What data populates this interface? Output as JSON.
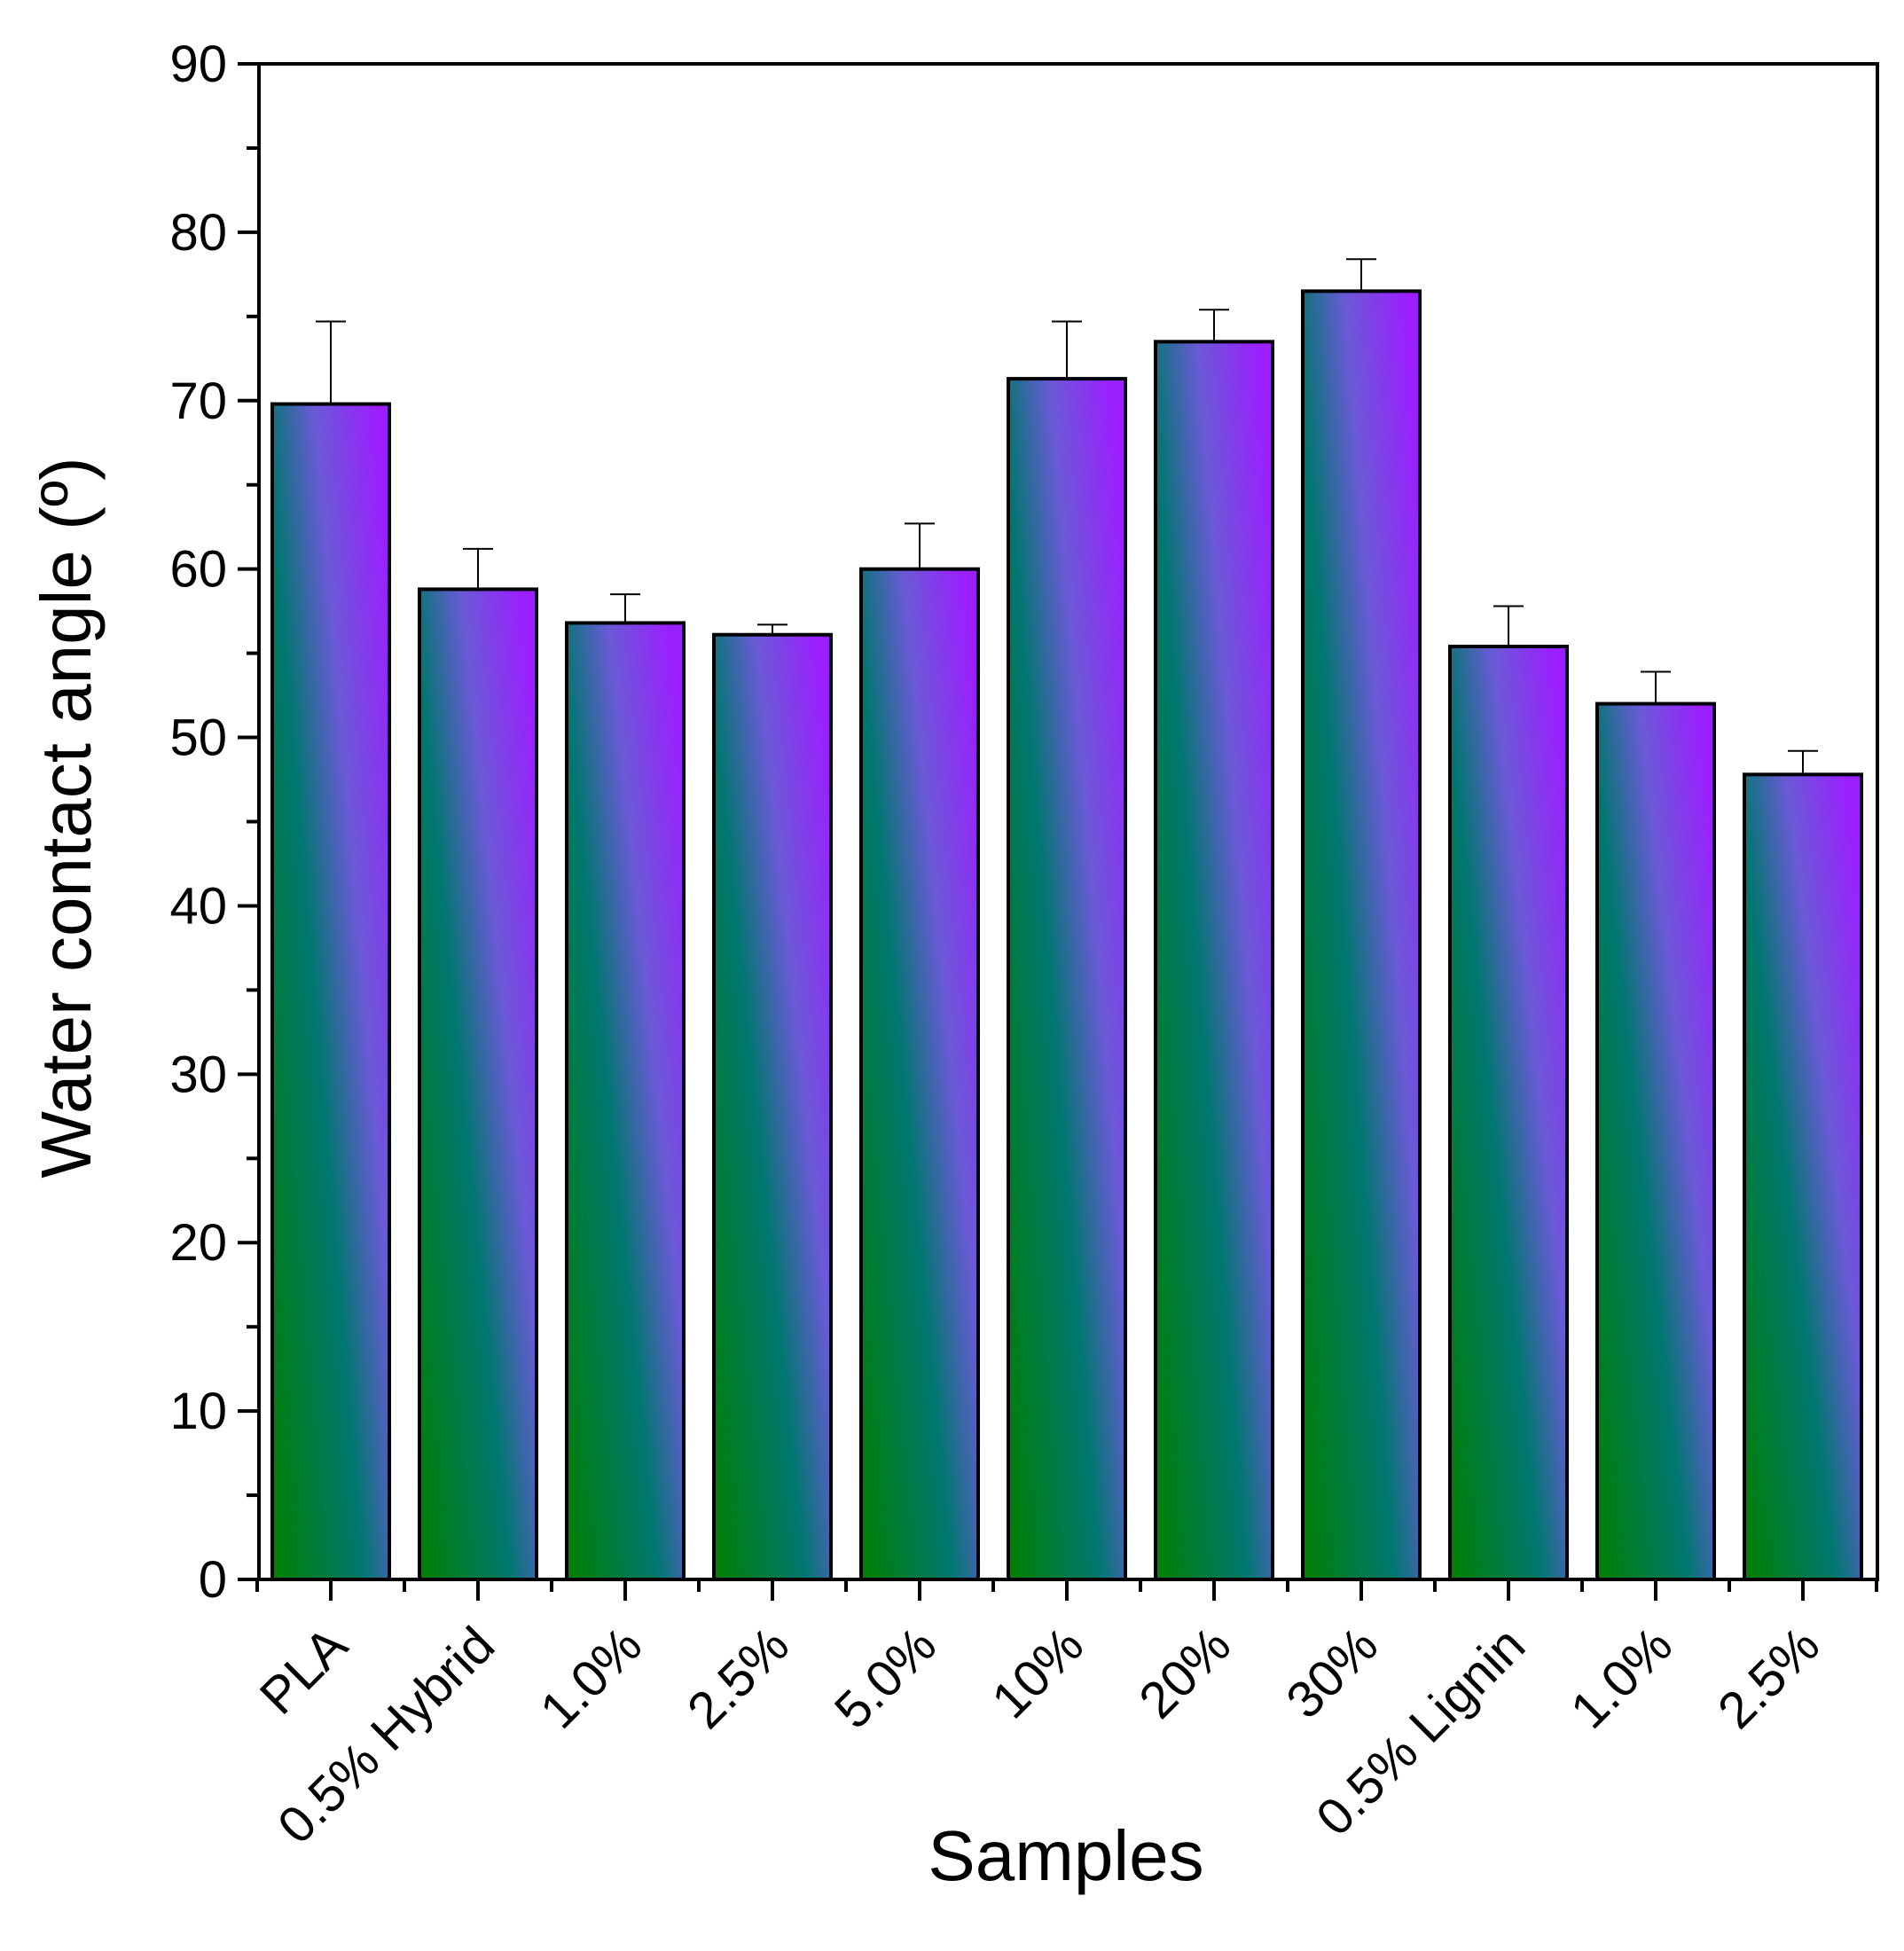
{
  "chart_data": {
    "type": "bar",
    "title": "",
    "xlabel": "Samples",
    "ylabel": "Water contact angle (º)",
    "ylim": [
      0,
      90
    ],
    "yticks": [
      0,
      10,
      20,
      30,
      40,
      50,
      60,
      70,
      80,
      90
    ],
    "categories": [
      "PLA",
      "0.5% Hybrid",
      "1.0%",
      "2.5%",
      "5.0%",
      "10%",
      "20%",
      "30%",
      "0.5% Lignin",
      "1.0%",
      "2.5%"
    ],
    "values": [
      69.8,
      58.8,
      56.8,
      56.1,
      60.0,
      71.3,
      73.5,
      76.5,
      55.4,
      52.0,
      47.8
    ],
    "errors": [
      4.9,
      2.4,
      1.7,
      0.6,
      2.7,
      3.4,
      1.9,
      1.9,
      2.4,
      1.9,
      1.4
    ],
    "grid": false,
    "colors": {
      "gradient_start": "#008000",
      "gradient_mid": "#00776f",
      "gradient_end": "#9b1fff",
      "outline": "#000000"
    }
  }
}
